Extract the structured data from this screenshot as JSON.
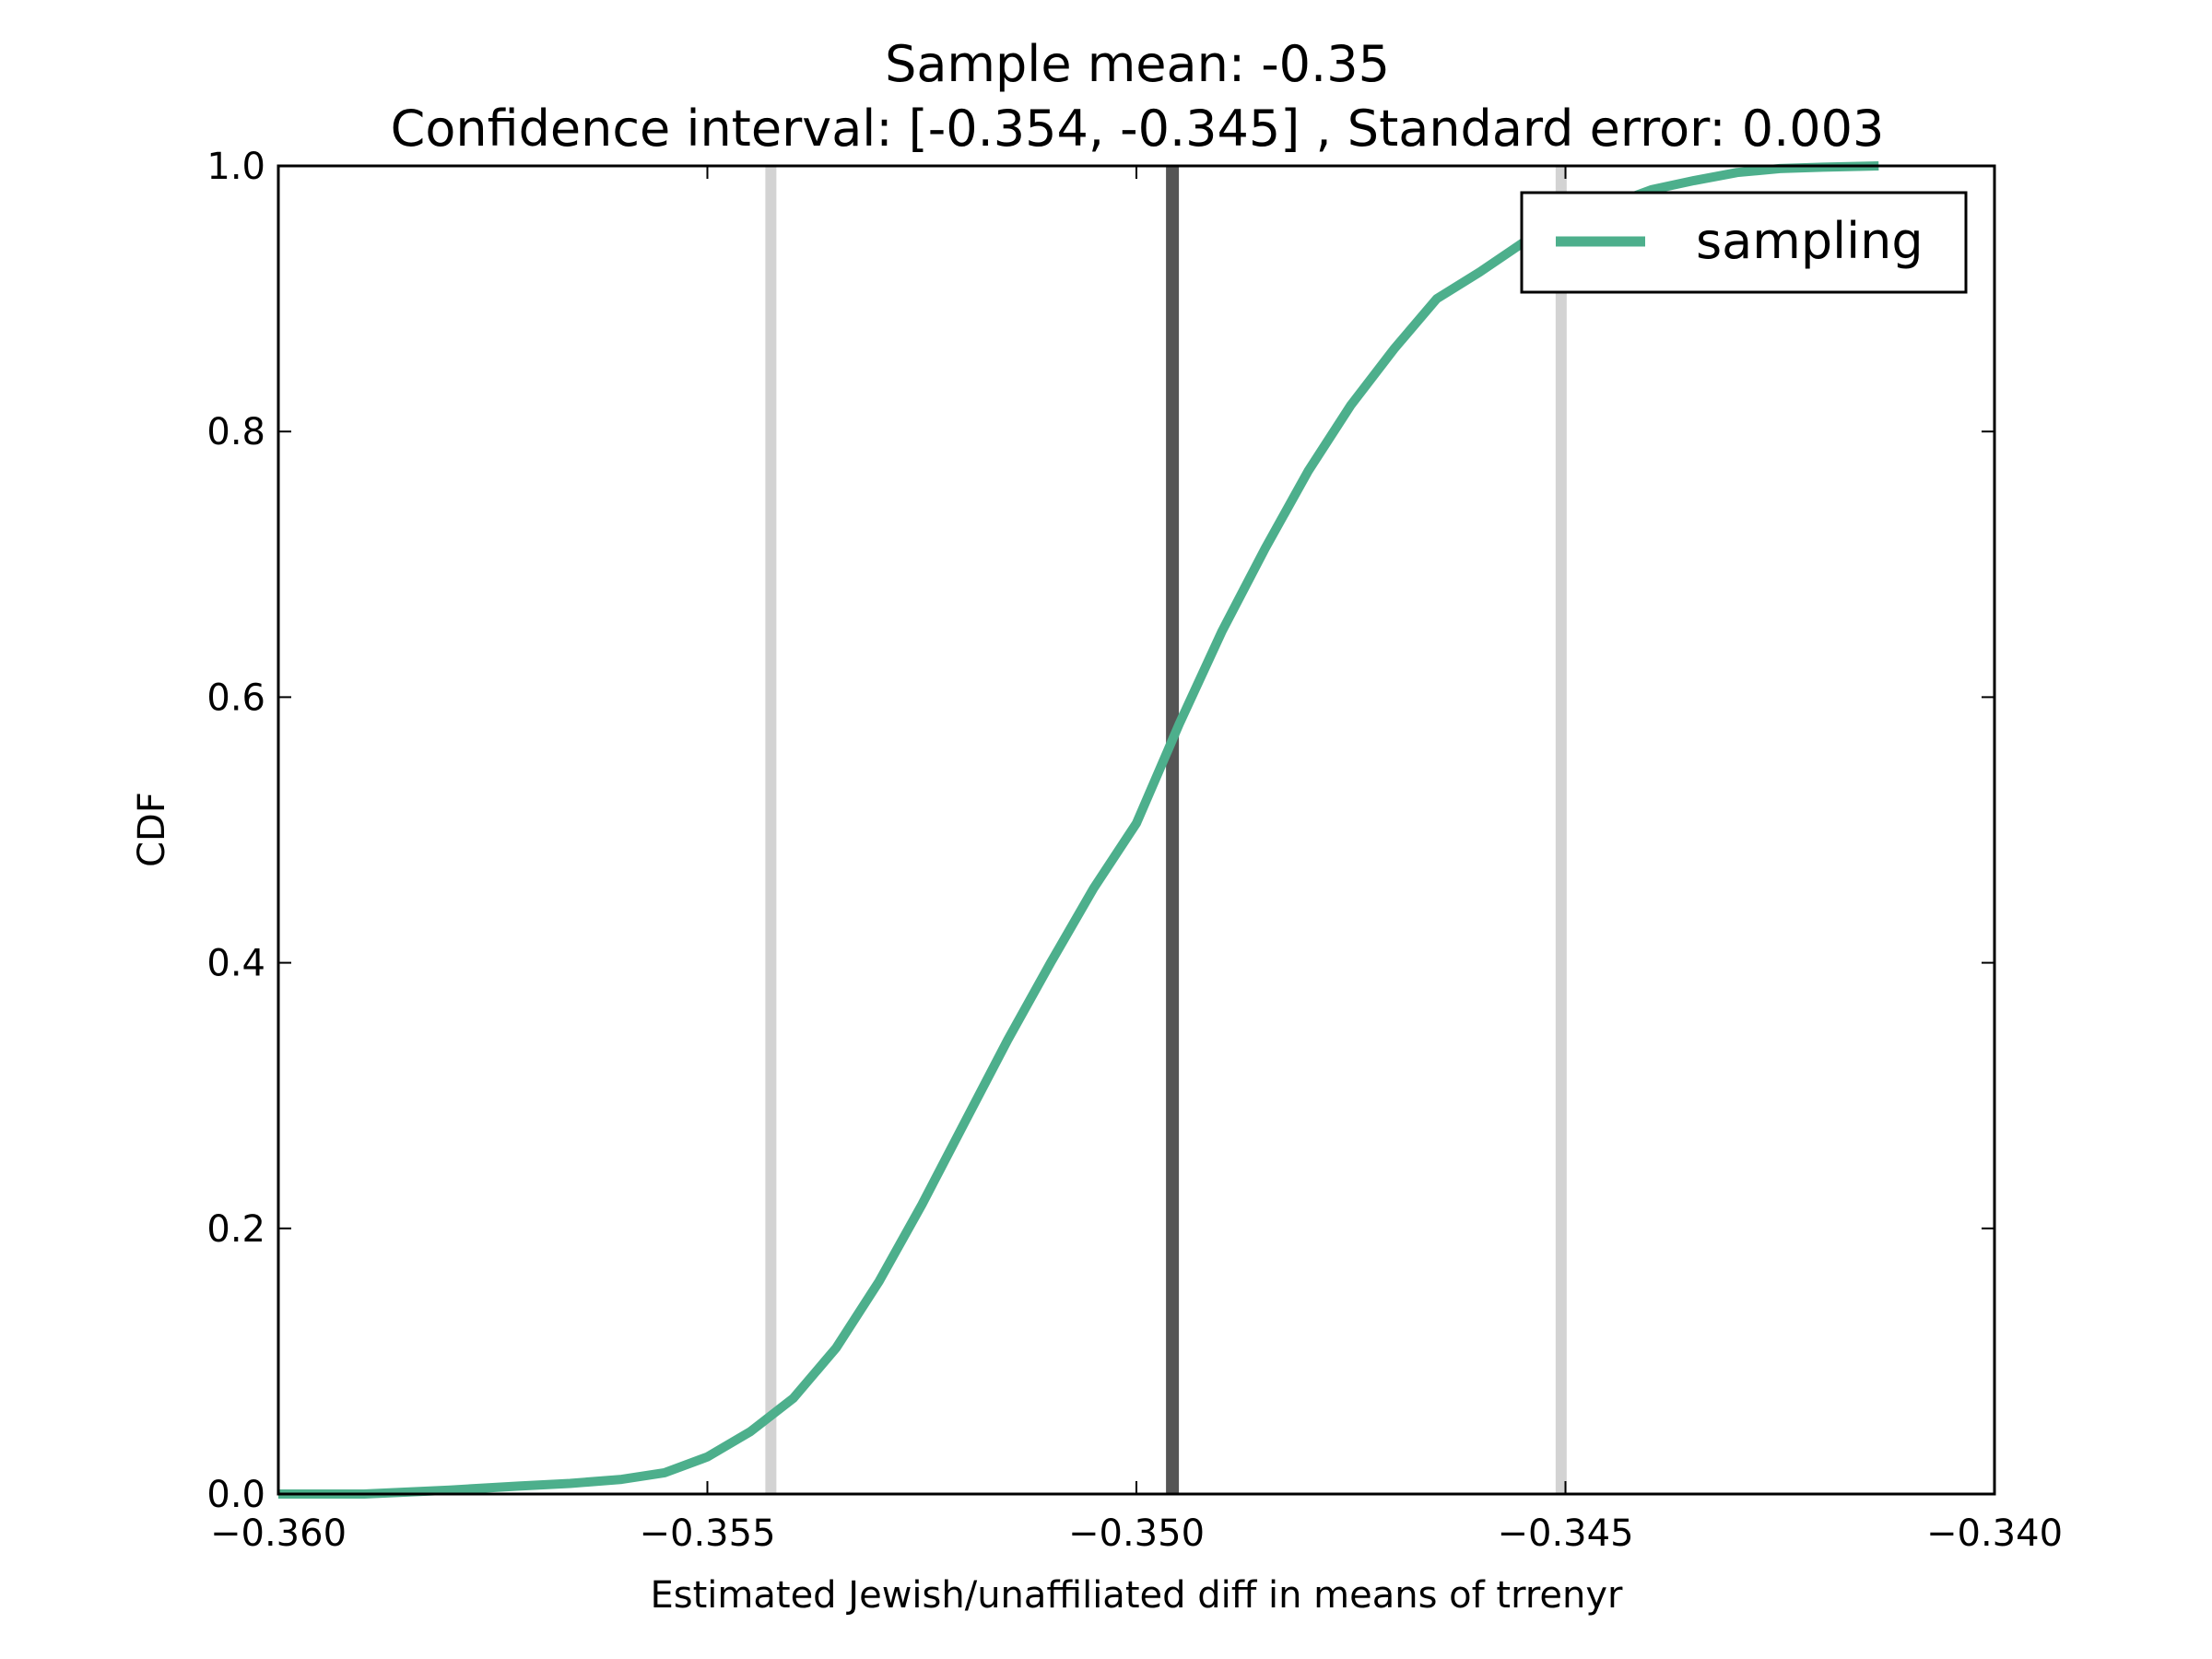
{
  "chart_data": {
    "type": "line",
    "title": "Sample mean: -0.35",
    "subtitle": "Confidence interval: [-0.354, -0.345] , Standard error: 0.003",
    "xlabel": "Estimated Jewish/unaffiliated diff in means of trrenyr",
    "ylabel": "CDF",
    "xlim": [
      -0.36,
      -0.34
    ],
    "ylim": [
      0.0,
      1.0
    ],
    "x_ticks": [
      -0.36,
      -0.355,
      -0.35,
      -0.345,
      -0.34
    ],
    "x_tick_labels": [
      "−0.360",
      "−0.355",
      "−0.350",
      "−0.345",
      "−0.340"
    ],
    "y_ticks": [
      0.0,
      0.2,
      0.4,
      0.6,
      0.8,
      1.0
    ],
    "y_tick_labels": [
      "0.0",
      "0.2",
      "0.4",
      "0.6",
      "0.8",
      "1.0"
    ],
    "grid": false,
    "legend_position": "top-right",
    "reference_lines": [
      {
        "x": -0.35426,
        "role": "ci-lower",
        "color": "#d3d3d3"
      },
      {
        "x": -0.34958,
        "role": "mean",
        "color": "#555555"
      },
      {
        "x": -0.34505,
        "role": "ci-upper",
        "color": "#d3d3d3"
      }
    ],
    "series": [
      {
        "name": "sampling",
        "color": "#4daf8c",
        "x": [
          -0.36,
          -0.359,
          -0.358,
          -0.3572,
          -0.3566,
          -0.356,
          -0.3555,
          -0.355,
          -0.3545,
          -0.354,
          -0.3535,
          -0.353,
          -0.3525,
          -0.352,
          -0.3515,
          -0.351,
          -0.3505,
          -0.35,
          -0.3495,
          -0.349,
          -0.3485,
          -0.348,
          -0.3475,
          -0.347,
          -0.3465,
          -0.346,
          -0.3455,
          -0.345,
          -0.3445,
          -0.344,
          -0.3435,
          -0.343,
          -0.3425,
          -0.342,
          -0.34135
        ],
        "y": [
          0.0,
          0.0,
          0.003,
          0.006,
          0.008,
          0.011,
          0.016,
          0.028,
          0.047,
          0.072,
          0.11,
          0.16,
          0.218,
          0.28,
          0.342,
          0.4,
          0.456,
          0.505,
          0.58,
          0.65,
          0.712,
          0.77,
          0.82,
          0.862,
          0.9,
          0.92,
          0.942,
          0.955,
          0.97,
          0.982,
          0.989,
          0.995,
          0.998,
          0.999,
          1.0
        ]
      }
    ]
  }
}
